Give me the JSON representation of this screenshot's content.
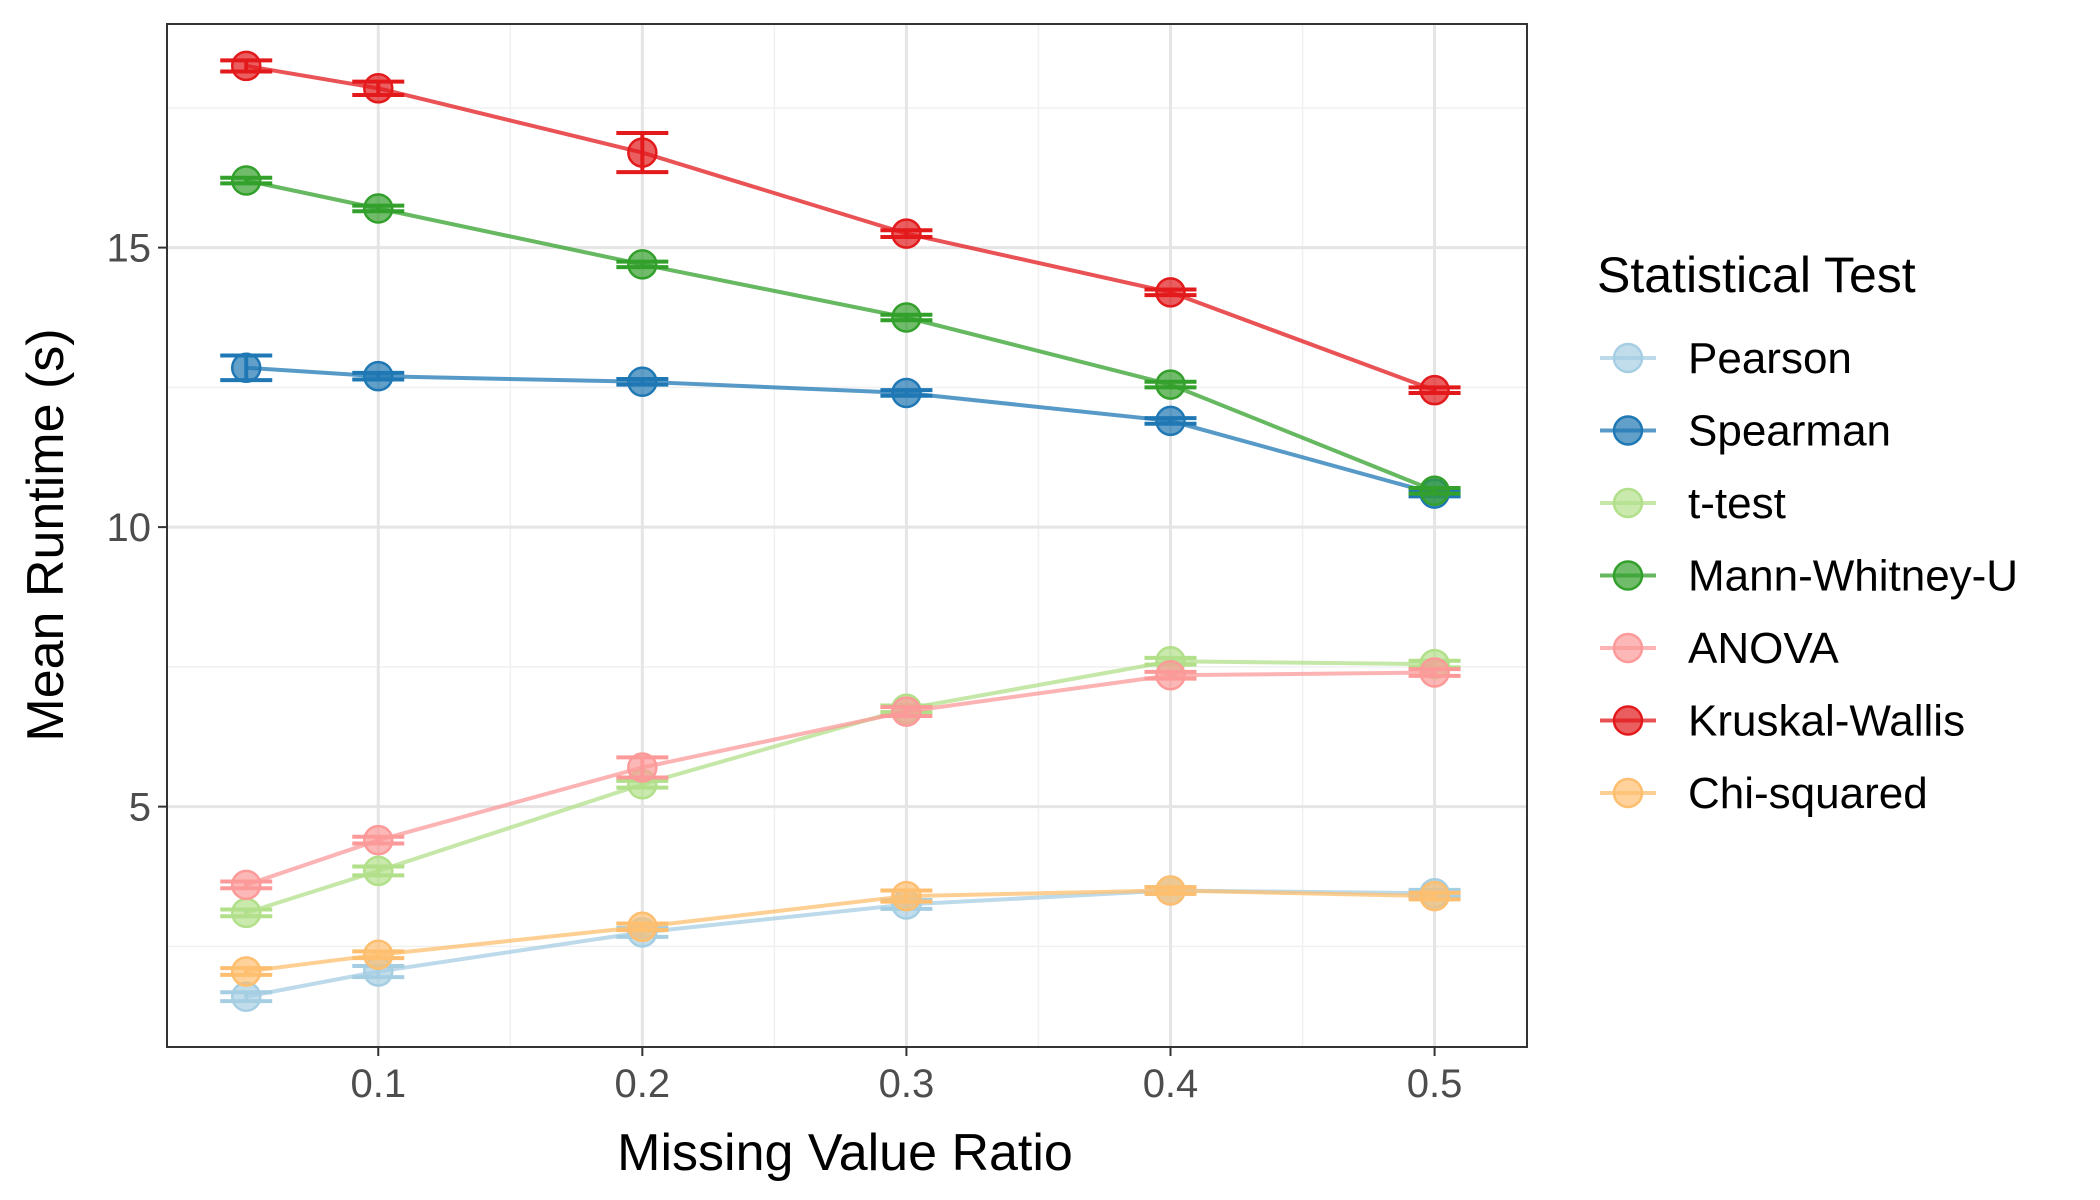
{
  "chart_data": {
    "type": "line",
    "xlabel": "Missing Value Ratio",
    "ylabel": "Mean Runtime (s)",
    "legend_title": "Statistical Test",
    "legend_position": "right",
    "grid": true,
    "x": [
      0.05,
      0.1,
      0.2,
      0.3,
      0.4,
      0.5
    ],
    "xlim": [
      0.02,
      0.535
    ],
    "ylim": [
      0.7,
      19.0
    ],
    "x_ticks": [
      0.1,
      0.2,
      0.3,
      0.4,
      0.5
    ],
    "x_tick_labels": [
      "0.1",
      "0.2",
      "0.3",
      "0.4",
      "0.5"
    ],
    "y_ticks": [
      5,
      10,
      15
    ],
    "y_tick_labels": [
      "5",
      "10",
      "15"
    ],
    "series": [
      {
        "name": "Pearson",
        "color": "#a6cee3",
        "values": [
          1.6,
          2.05,
          2.75,
          3.25,
          3.5,
          3.45
        ],
        "errors": [
          0.08,
          0.1,
          0.08,
          0.08,
          0.06,
          0.06
        ]
      },
      {
        "name": "Spearman",
        "color": "#1f78b4",
        "values": [
          12.85,
          12.7,
          12.6,
          12.4,
          11.9,
          10.6
        ],
        "errors": [
          0.22,
          0.06,
          0.05,
          0.05,
          0.05,
          0.05
        ]
      },
      {
        "name": "t-test",
        "color": "#b2df8a",
        "values": [
          3.1,
          3.85,
          5.4,
          6.75,
          7.6,
          7.55
        ],
        "errors": [
          0.06,
          0.08,
          0.06,
          0.06,
          0.06,
          0.06
        ]
      },
      {
        "name": "Mann-Whitney-U",
        "color": "#33a02c",
        "values": [
          16.2,
          15.7,
          14.7,
          13.75,
          12.55,
          10.65
        ],
        "errors": [
          0.05,
          0.05,
          0.05,
          0.05,
          0.05,
          0.05
        ]
      },
      {
        "name": "ANOVA",
        "color": "#fb9a99",
        "values": [
          3.6,
          4.4,
          5.7,
          6.7,
          7.35,
          7.4
        ],
        "errors": [
          0.06,
          0.06,
          0.18,
          0.08,
          0.06,
          0.06
        ]
      },
      {
        "name": "Kruskal-Wallis",
        "color": "#e31a1c",
        "values": [
          18.25,
          17.85,
          16.7,
          15.25,
          14.2,
          12.45
        ],
        "errors": [
          0.1,
          0.12,
          0.35,
          0.06,
          0.05,
          0.05
        ]
      },
      {
        "name": "Chi-squared",
        "color": "#fdbf6f",
        "values": [
          2.05,
          2.35,
          2.85,
          3.4,
          3.5,
          3.4
        ],
        "errors": [
          0.06,
          0.06,
          0.06,
          0.1,
          0.06,
          0.06
        ]
      }
    ]
  }
}
